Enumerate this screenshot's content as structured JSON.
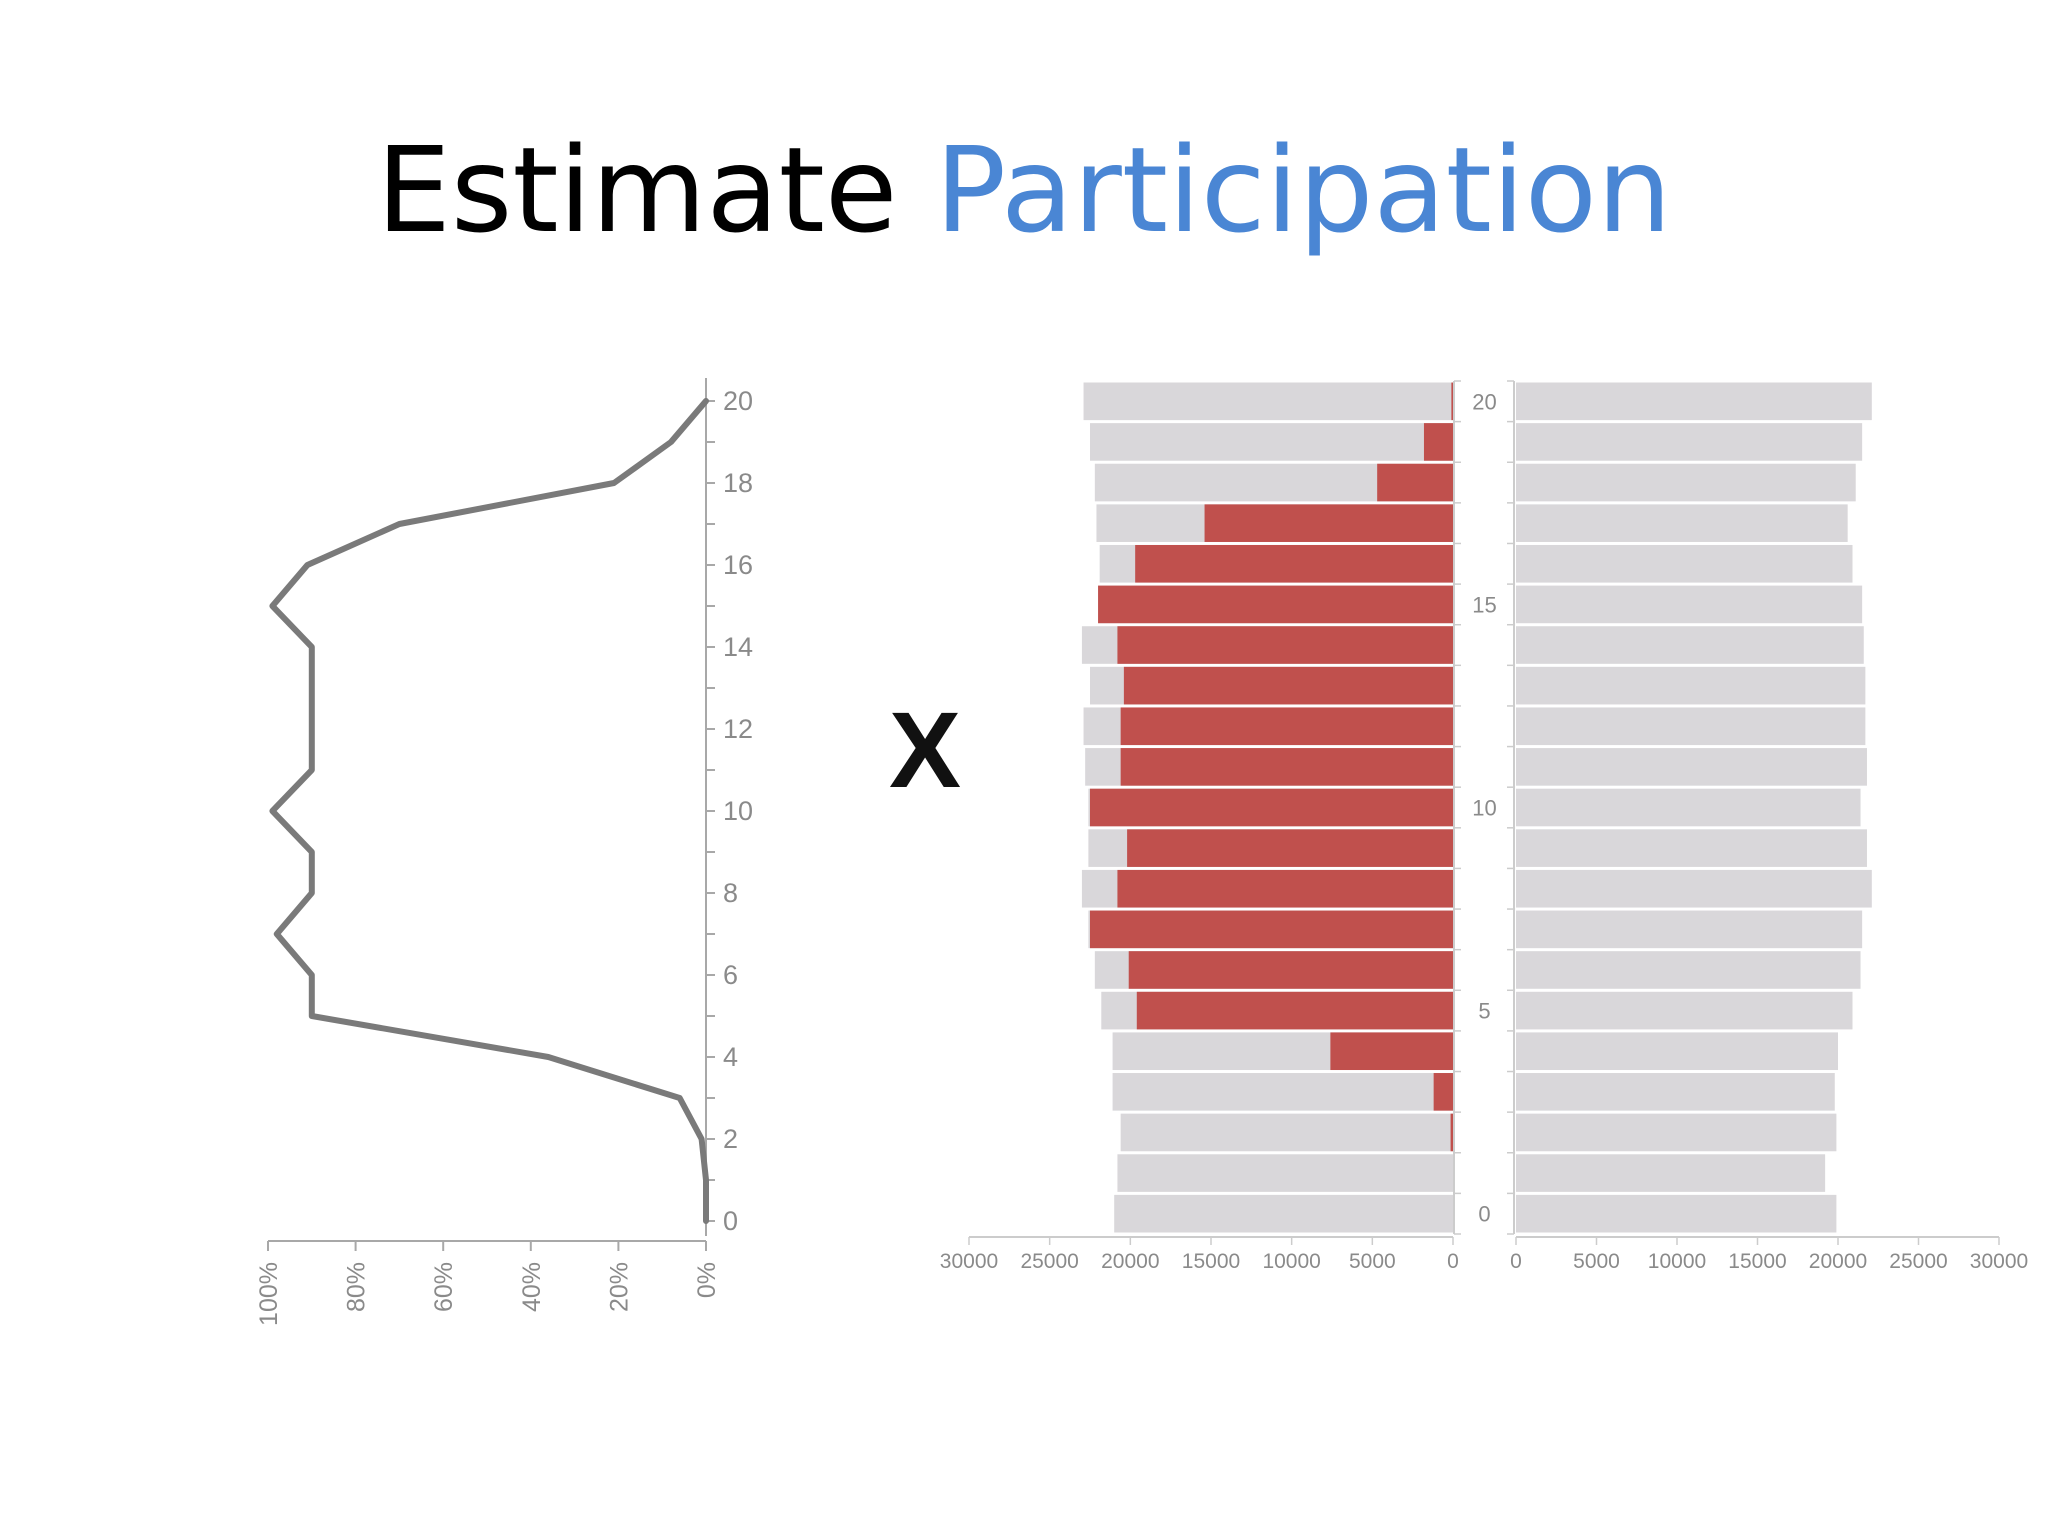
{
  "title": {
    "prefix": "Estimate",
    "accent": "Participation"
  },
  "operator": "X",
  "colors": {
    "accent": "#4a86d4",
    "line": "#7a7a7a",
    "participating": "#c0504d",
    "population": "#d9d7da",
    "axis": "#a8a8a8",
    "tick_text": "#8a8a8a"
  },
  "chart_data": [
    {
      "type": "line",
      "orientation": "vertical",
      "y_ticks": [
        "0",
        "2",
        "4",
        "6",
        "8",
        "10",
        "12",
        "14",
        "16",
        "18",
        "20"
      ],
      "x_ticks": [
        "100%",
        "80%",
        "60%",
        "40%",
        "20%",
        "0%"
      ],
      "x_ticks_rotated": true,
      "y_range": [
        0,
        20
      ],
      "x_range_percent": [
        100,
        0
      ],
      "series": [
        {
          "y": [
            0,
            1,
            2,
            3,
            4,
            5,
            6,
            7,
            8,
            9,
            10,
            11,
            12,
            13,
            14,
            15,
            16,
            17,
            18,
            19,
            20
          ],
          "x_percent": [
            0,
            0,
            1,
            6,
            36,
            90,
            90,
            98,
            90,
            90,
            99,
            90,
            90,
            90,
            90,
            99,
            91,
            70,
            21,
            8,
            0
          ]
        }
      ]
    },
    {
      "type": "bar",
      "orientation": "horizontal",
      "layout": "population-pyramid",
      "categories": [
        "0",
        "1",
        "2",
        "3",
        "4",
        "5",
        "6",
        "7",
        "8",
        "9",
        "10",
        "11",
        "12",
        "13",
        "14",
        "15",
        "16",
        "17",
        "18",
        "19",
        "20"
      ],
      "center_ticks": [
        "0",
        "5",
        "10",
        "15",
        "20"
      ],
      "left_x_ticks": [
        "30000",
        "25000",
        "20000",
        "15000",
        "10000",
        "5000",
        "0"
      ],
      "right_x_ticks": [
        "0",
        "5000",
        "10000",
        "15000",
        "20000",
        "25000",
        "30000"
      ],
      "x_range": [
        0,
        30000
      ],
      "series": [
        {
          "name": "",
          "side": "left",
          "role": "population",
          "values": [
            21000,
            20800,
            20600,
            21100,
            21100,
            21800,
            22200,
            22600,
            23000,
            22600,
            22600,
            22800,
            22900,
            22500,
            23000,
            22000,
            21900,
            22100,
            22200,
            22500,
            22900
          ]
        },
        {
          "name": "",
          "side": "left",
          "role": "participating",
          "values": [
            0,
            0,
            150,
            1200,
            7600,
            19600,
            20100,
            22500,
            20800,
            20200,
            22500,
            20600,
            20600,
            20400,
            20800,
            22000,
            19700,
            15400,
            4700,
            1800,
            100
          ]
        },
        {
          "name": "",
          "side": "right",
          "role": "population",
          "values": [
            19900,
            19200,
            19900,
            19800,
            20000,
            20900,
            21400,
            21500,
            22100,
            21800,
            21400,
            21800,
            21700,
            21700,
            21600,
            21500,
            20900,
            20600,
            21100,
            21500,
            22100
          ]
        }
      ]
    }
  ]
}
